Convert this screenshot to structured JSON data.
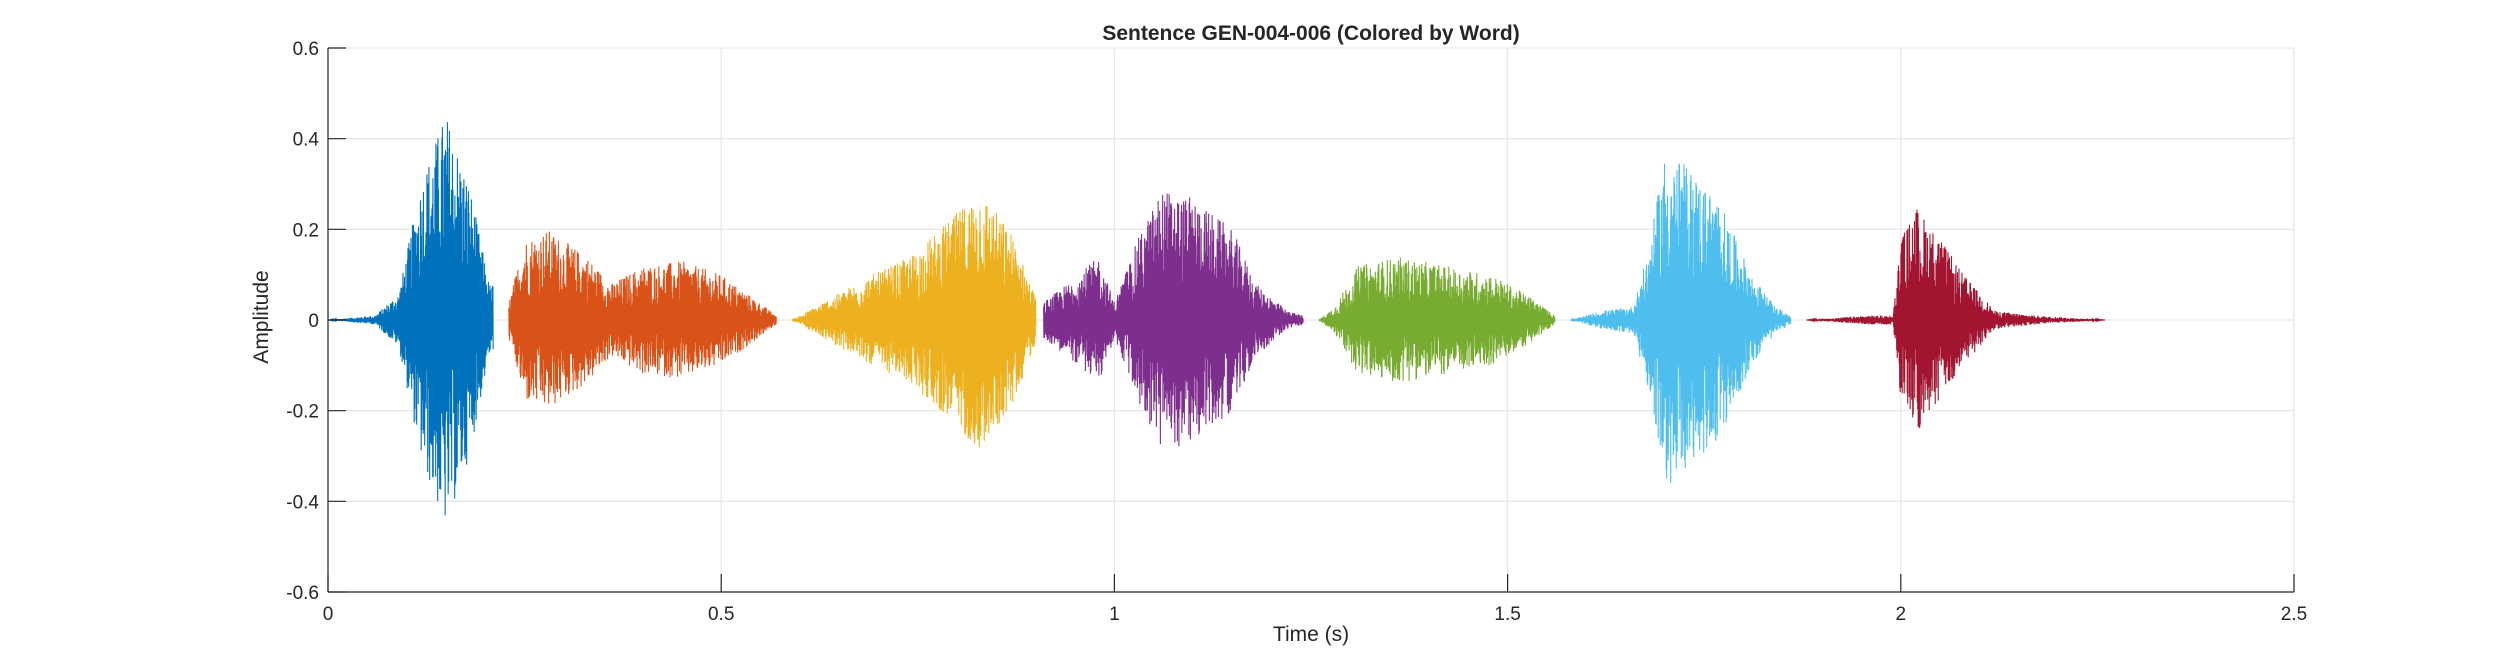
{
  "chart_data": {
    "type": "line",
    "title": "Sentence GEN-004-006 (Colored by Word)",
    "xlabel": "Time (s)",
    "ylabel": "Amplitude",
    "xlim": [
      0,
      2.5
    ],
    "ylim": [
      -0.6,
      0.6
    ],
    "xticks": [
      0,
      0.5,
      1,
      1.5,
      2,
      2.5
    ],
    "xtick_labels": [
      "0",
      "0.5",
      "1",
      "1.5",
      "2",
      "2.5"
    ],
    "yticks": [
      -0.6,
      -0.4,
      -0.2,
      0,
      0.2,
      0.4,
      0.6
    ],
    "ytick_labels": [
      "-0.6",
      "-0.4",
      "-0.2",
      "0",
      "0.2",
      "0.4",
      "0.6"
    ],
    "grid": true,
    "legend": "none",
    "segments": [
      {
        "color": "#0072BD",
        "t_start": 0.0,
        "t_end": 0.21,
        "envelope": [
          [
            0.0,
            0.0
          ],
          [
            0.06,
            0.01
          ],
          [
            0.09,
            0.06
          ],
          [
            0.12,
            0.32
          ],
          [
            0.15,
            0.46
          ],
          [
            0.18,
            0.3
          ],
          [
            0.205,
            0.08
          ]
        ]
      },
      {
        "color": "#D95319",
        "t_start": 0.23,
        "t_end": 0.57,
        "envelope": [
          [
            0.23,
            0.04
          ],
          [
            0.25,
            0.18
          ],
          [
            0.28,
            0.2
          ],
          [
            0.33,
            0.14
          ],
          [
            0.36,
            0.08
          ],
          [
            0.4,
            0.12
          ],
          [
            0.45,
            0.13
          ],
          [
            0.5,
            0.1
          ],
          [
            0.54,
            0.05
          ],
          [
            0.57,
            0.01
          ]
        ]
      },
      {
        "color": "#EDB120",
        "t_start": 0.59,
        "t_end": 0.9,
        "envelope": [
          [
            0.59,
            0.0
          ],
          [
            0.62,
            0.03
          ],
          [
            0.68,
            0.09
          ],
          [
            0.74,
            0.14
          ],
          [
            0.79,
            0.22
          ],
          [
            0.83,
            0.29
          ],
          [
            0.87,
            0.19
          ],
          [
            0.9,
            0.05
          ]
        ]
      },
      {
        "color": "#7E2F8E",
        "t_start": 0.91,
        "t_end": 1.24,
        "envelope": [
          [
            0.91,
            0.04
          ],
          [
            0.94,
            0.08
          ],
          [
            0.98,
            0.14
          ],
          [
            1.0,
            0.04
          ],
          [
            1.03,
            0.18
          ],
          [
            1.06,
            0.29
          ],
          [
            1.1,
            0.27
          ],
          [
            1.15,
            0.2
          ],
          [
            1.18,
            0.08
          ],
          [
            1.22,
            0.02
          ],
          [
            1.24,
            0.01
          ]
        ]
      },
      {
        "color": "#77AC30",
        "t_start": 1.26,
        "t_end": 1.56,
        "envelope": [
          [
            1.26,
            0.0
          ],
          [
            1.28,
            0.03
          ],
          [
            1.31,
            0.12
          ],
          [
            1.36,
            0.14
          ],
          [
            1.42,
            0.12
          ],
          [
            1.48,
            0.1
          ],
          [
            1.53,
            0.05
          ],
          [
            1.56,
            0.01
          ]
        ]
      },
      {
        "color": "#4DBEEE",
        "t_start": 1.58,
        "t_end": 1.86,
        "envelope": [
          [
            1.58,
            0.0
          ],
          [
            1.62,
            0.02
          ],
          [
            1.66,
            0.03
          ],
          [
            1.68,
            0.16
          ],
          [
            1.7,
            0.37
          ],
          [
            1.73,
            0.34
          ],
          [
            1.77,
            0.26
          ],
          [
            1.81,
            0.1
          ],
          [
            1.84,
            0.03
          ],
          [
            1.86,
            0.01
          ]
        ]
      },
      {
        "color": "#A2142F",
        "t_start": 1.88,
        "t_end": 2.26,
        "envelope": [
          [
            1.88,
            0.0
          ],
          [
            1.96,
            0.01
          ],
          [
            1.99,
            0.01
          ],
          [
            2.0,
            0.18
          ],
          [
            2.02,
            0.25
          ],
          [
            2.05,
            0.18
          ],
          [
            2.08,
            0.1
          ],
          [
            2.12,
            0.02
          ],
          [
            2.17,
            0.01
          ],
          [
            2.26,
            0.0
          ]
        ]
      }
    ]
  }
}
